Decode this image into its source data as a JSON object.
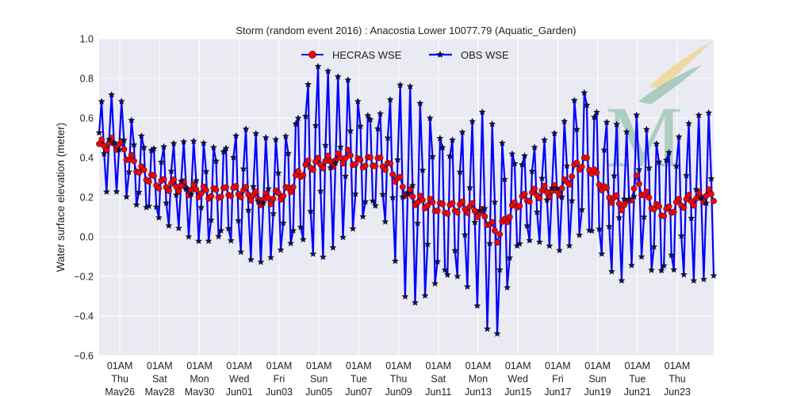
{
  "chart_data": {
    "type": "line",
    "title": "Storm (random event 2016) : Anacostia Lower 10077.79 (Aquatic_Garden)",
    "xlabel": "",
    "ylabel": "Water surface elevation (meter)",
    "xlim": [
      "2016-05-25T00:00",
      "2016-06-24T21:00"
    ],
    "ylim": [
      -0.6,
      1.0
    ],
    "yticks": [
      -0.6,
      -0.4,
      -0.2,
      0.0,
      0.2,
      0.4,
      0.6,
      0.8,
      1.0
    ],
    "ytick_labels": [
      "−0.6",
      "−0.4",
      "−0.2",
      "0.0",
      "0.2",
      "0.4",
      "0.6",
      "0.8",
      "1.0"
    ],
    "xticks": [
      {
        "x": "2016-05-26T01:00",
        "lines": [
          "01AM",
          "Thu",
          "May26"
        ]
      },
      {
        "x": "2016-05-28T01:00",
        "lines": [
          "01AM",
          "Sat",
          "May28"
        ]
      },
      {
        "x": "2016-05-30T01:00",
        "lines": [
          "01AM",
          "Mon",
          "May30"
        ]
      },
      {
        "x": "2016-06-01T01:00",
        "lines": [
          "01AM",
          "Wed",
          "Jun01"
        ]
      },
      {
        "x": "2016-06-03T01:00",
        "lines": [
          "01AM",
          "Fri",
          "Jun03"
        ]
      },
      {
        "x": "2016-06-05T01:00",
        "lines": [
          "01AM",
          "Sun",
          "Jun05"
        ]
      },
      {
        "x": "2016-06-07T01:00",
        "lines": [
          "01AM",
          "Tue",
          "Jun07"
        ]
      },
      {
        "x": "2016-06-09T01:00",
        "lines": [
          "01AM",
          "Thu",
          "Jun09"
        ]
      },
      {
        "x": "2016-06-11T01:00",
        "lines": [
          "01AM",
          "Sat",
          "Jun11"
        ]
      },
      {
        "x": "2016-06-13T01:00",
        "lines": [
          "01AM",
          "Mon",
          "Jun13"
        ]
      },
      {
        "x": "2016-06-15T01:00",
        "lines": [
          "01AM",
          "Wed",
          "Jun15"
        ]
      },
      {
        "x": "2016-06-17T01:00",
        "lines": [
          "01AM",
          "Fri",
          "Jun17"
        ]
      },
      {
        "x": "2016-06-19T01:00",
        "lines": [
          "01AM",
          "Sun",
          "Jun19"
        ]
      },
      {
        "x": "2016-06-21T01:00",
        "lines": [
          "01AM",
          "Tue",
          "Jun21"
        ]
      },
      {
        "x": "2016-06-23T01:00",
        "lines": [
          "01AM",
          "Thu",
          "Jun23"
        ]
      }
    ],
    "grid": true,
    "legend_position": "top-center",
    "background_color": "#eaeaf2",
    "series": [
      {
        "name": "HECRAS WSE",
        "color": "#ff0000",
        "line_color": "#0000ff",
        "marker": "circle",
        "x": [
          "2016-05-25T00:00",
          "2016-05-25T12:00",
          "2016-05-26T00:00",
          "2016-05-26T12:00",
          "2016-05-27T00:00",
          "2016-05-27T12:00",
          "2016-05-28T00:00",
          "2016-05-28T12:00",
          "2016-05-29T00:00",
          "2016-05-29T12:00",
          "2016-05-30T00:00",
          "2016-05-30T12:00",
          "2016-05-31T00:00",
          "2016-05-31T12:00",
          "2016-06-01T00:00",
          "2016-06-01T12:00",
          "2016-06-02T00:00",
          "2016-06-02T12:00",
          "2016-06-03T00:00",
          "2016-06-03T12:00",
          "2016-06-04T00:00",
          "2016-06-04T12:00",
          "2016-06-05T00:00",
          "2016-06-05T12:00",
          "2016-06-06T00:00",
          "2016-06-06T12:00",
          "2016-06-07T00:00",
          "2016-06-07T12:00",
          "2016-06-08T00:00",
          "2016-06-08T12:00",
          "2016-06-09T00:00",
          "2016-06-09T12:00",
          "2016-06-10T00:00",
          "2016-06-10T12:00",
          "2016-06-11T00:00",
          "2016-06-11T12:00",
          "2016-06-12T00:00",
          "2016-06-12T12:00",
          "2016-06-13T00:00",
          "2016-06-13T12:00",
          "2016-06-14T00:00",
          "2016-06-14T12:00",
          "2016-06-15T00:00",
          "2016-06-15T12:00",
          "2016-06-16T00:00",
          "2016-06-16T12:00",
          "2016-06-17T00:00",
          "2016-06-17T12:00",
          "2016-06-18T00:00",
          "2016-06-18T12:00",
          "2016-06-19T00:00",
          "2016-06-19T12:00",
          "2016-06-20T00:00",
          "2016-06-20T12:00",
          "2016-06-21T00:00",
          "2016-06-21T12:00",
          "2016-06-22T00:00",
          "2016-06-22T12:00",
          "2016-06-23T00:00",
          "2016-06-23T12:00",
          "2016-06-24T00:00",
          "2016-06-24T12:00"
        ],
        "values": [
          0.46,
          0.47,
          0.47,
          0.4,
          0.34,
          0.3,
          0.27,
          0.26,
          0.26,
          0.24,
          0.23,
          0.22,
          0.22,
          0.23,
          0.23,
          0.22,
          0.19,
          0.19,
          0.21,
          0.23,
          0.31,
          0.36,
          0.37,
          0.38,
          0.39,
          0.41,
          0.37,
          0.38,
          0.38,
          0.36,
          0.29,
          0.22,
          0.18,
          0.17,
          0.15,
          0.14,
          0.15,
          0.15,
          0.13,
          0.09,
          0.0,
          0.1,
          0.17,
          0.2,
          0.22,
          0.23,
          0.23,
          0.27,
          0.36,
          0.38,
          0.3,
          0.22,
          0.18,
          0.15,
          0.28,
          0.2,
          0.14,
          0.12,
          0.16,
          0.18,
          0.19,
          0.21
        ]
      },
      {
        "name": "OBS WSE",
        "color": "#0000ff",
        "line_color": "#0000ff",
        "marker": "star",
        "x": [
          "2016-05-25T00:00",
          "2016-05-25T12:00",
          "2016-05-26T00:00",
          "2016-05-26T12:00",
          "2016-05-27T00:00",
          "2016-05-27T12:00",
          "2016-05-28T00:00",
          "2016-05-28T12:00",
          "2016-05-29T00:00",
          "2016-05-29T12:00",
          "2016-05-30T00:00",
          "2016-05-30T12:00",
          "2016-05-31T00:00",
          "2016-05-31T12:00",
          "2016-06-01T00:00",
          "2016-06-01T12:00",
          "2016-06-02T00:00",
          "2016-06-02T12:00",
          "2016-06-03T00:00",
          "2016-06-03T12:00",
          "2016-06-04T00:00",
          "2016-06-04T12:00",
          "2016-06-05T00:00",
          "2016-06-05T12:00",
          "2016-06-06T00:00",
          "2016-06-06T12:00",
          "2016-06-07T00:00",
          "2016-06-07T12:00",
          "2016-06-08T00:00",
          "2016-06-08T12:00",
          "2016-06-09T00:00",
          "2016-06-09T12:00",
          "2016-06-10T00:00",
          "2016-06-10T12:00",
          "2016-06-11T00:00",
          "2016-06-11T12:00",
          "2016-06-12T00:00",
          "2016-06-12T12:00",
          "2016-06-13T00:00",
          "2016-06-13T12:00",
          "2016-06-14T00:00",
          "2016-06-14T12:00",
          "2016-06-15T00:00",
          "2016-06-15T12:00",
          "2016-06-16T00:00",
          "2016-06-16T12:00",
          "2016-06-17T00:00",
          "2016-06-17T12:00",
          "2016-06-18T00:00",
          "2016-06-18T12:00",
          "2016-06-19T00:00",
          "2016-06-19T12:00",
          "2016-06-20T00:00",
          "2016-06-20T12:00",
          "2016-06-21T00:00",
          "2016-06-21T12:00",
          "2016-06-22T00:00",
          "2016-06-22T12:00",
          "2016-06-23T00:00",
          "2016-06-23T12:00",
          "2016-06-24T00:00",
          "2016-06-24T12:00"
        ],
        "values": [
          0.46,
          0.47,
          0.47,
          0.4,
          0.34,
          0.3,
          0.27,
          0.26,
          0.26,
          0.24,
          0.23,
          0.22,
          0.22,
          0.23,
          0.23,
          0.22,
          0.19,
          0.19,
          0.21,
          0.23,
          0.31,
          0.36,
          0.37,
          0.38,
          0.39,
          0.41,
          0.37,
          0.38,
          0.38,
          0.36,
          0.29,
          0.22,
          0.18,
          0.17,
          0.15,
          0.14,
          0.15,
          0.15,
          0.13,
          0.09,
          0.0,
          0.1,
          0.17,
          0.2,
          0.22,
          0.23,
          0.23,
          0.27,
          0.36,
          0.38,
          0.3,
          0.22,
          0.18,
          0.15,
          0.28,
          0.2,
          0.14,
          0.12,
          0.16,
          0.18,
          0.19,
          0.21
        ],
        "tidal_amplitude": [
          0.22,
          0.25,
          0.24,
          0.22,
          0.22,
          0.21,
          0.21,
          0.22,
          0.22,
          0.24,
          0.26,
          0.27,
          0.28,
          0.3,
          0.33,
          0.34,
          0.32,
          0.31,
          0.3,
          0.34,
          0.4,
          0.48,
          0.52,
          0.46,
          0.42,
          0.4,
          0.36,
          0.31,
          0.28,
          0.34,
          0.48,
          0.56,
          0.52,
          0.5,
          0.46,
          0.44,
          0.4,
          0.42,
          0.48,
          0.56,
          0.52,
          0.42,
          0.3,
          0.26,
          0.26,
          0.27,
          0.3,
          0.34,
          0.4,
          0.45,
          0.42,
          0.4,
          0.4,
          0.38,
          0.34,
          0.37,
          0.4,
          0.39,
          0.38,
          0.4,
          0.42,
          0.42
        ],
        "tidal_period_hours": 12.42
      }
    ]
  },
  "watermark": {
    "type": "logo",
    "text": "M",
    "colors": [
      "#8fbfa9",
      "#f0d080"
    ]
  }
}
